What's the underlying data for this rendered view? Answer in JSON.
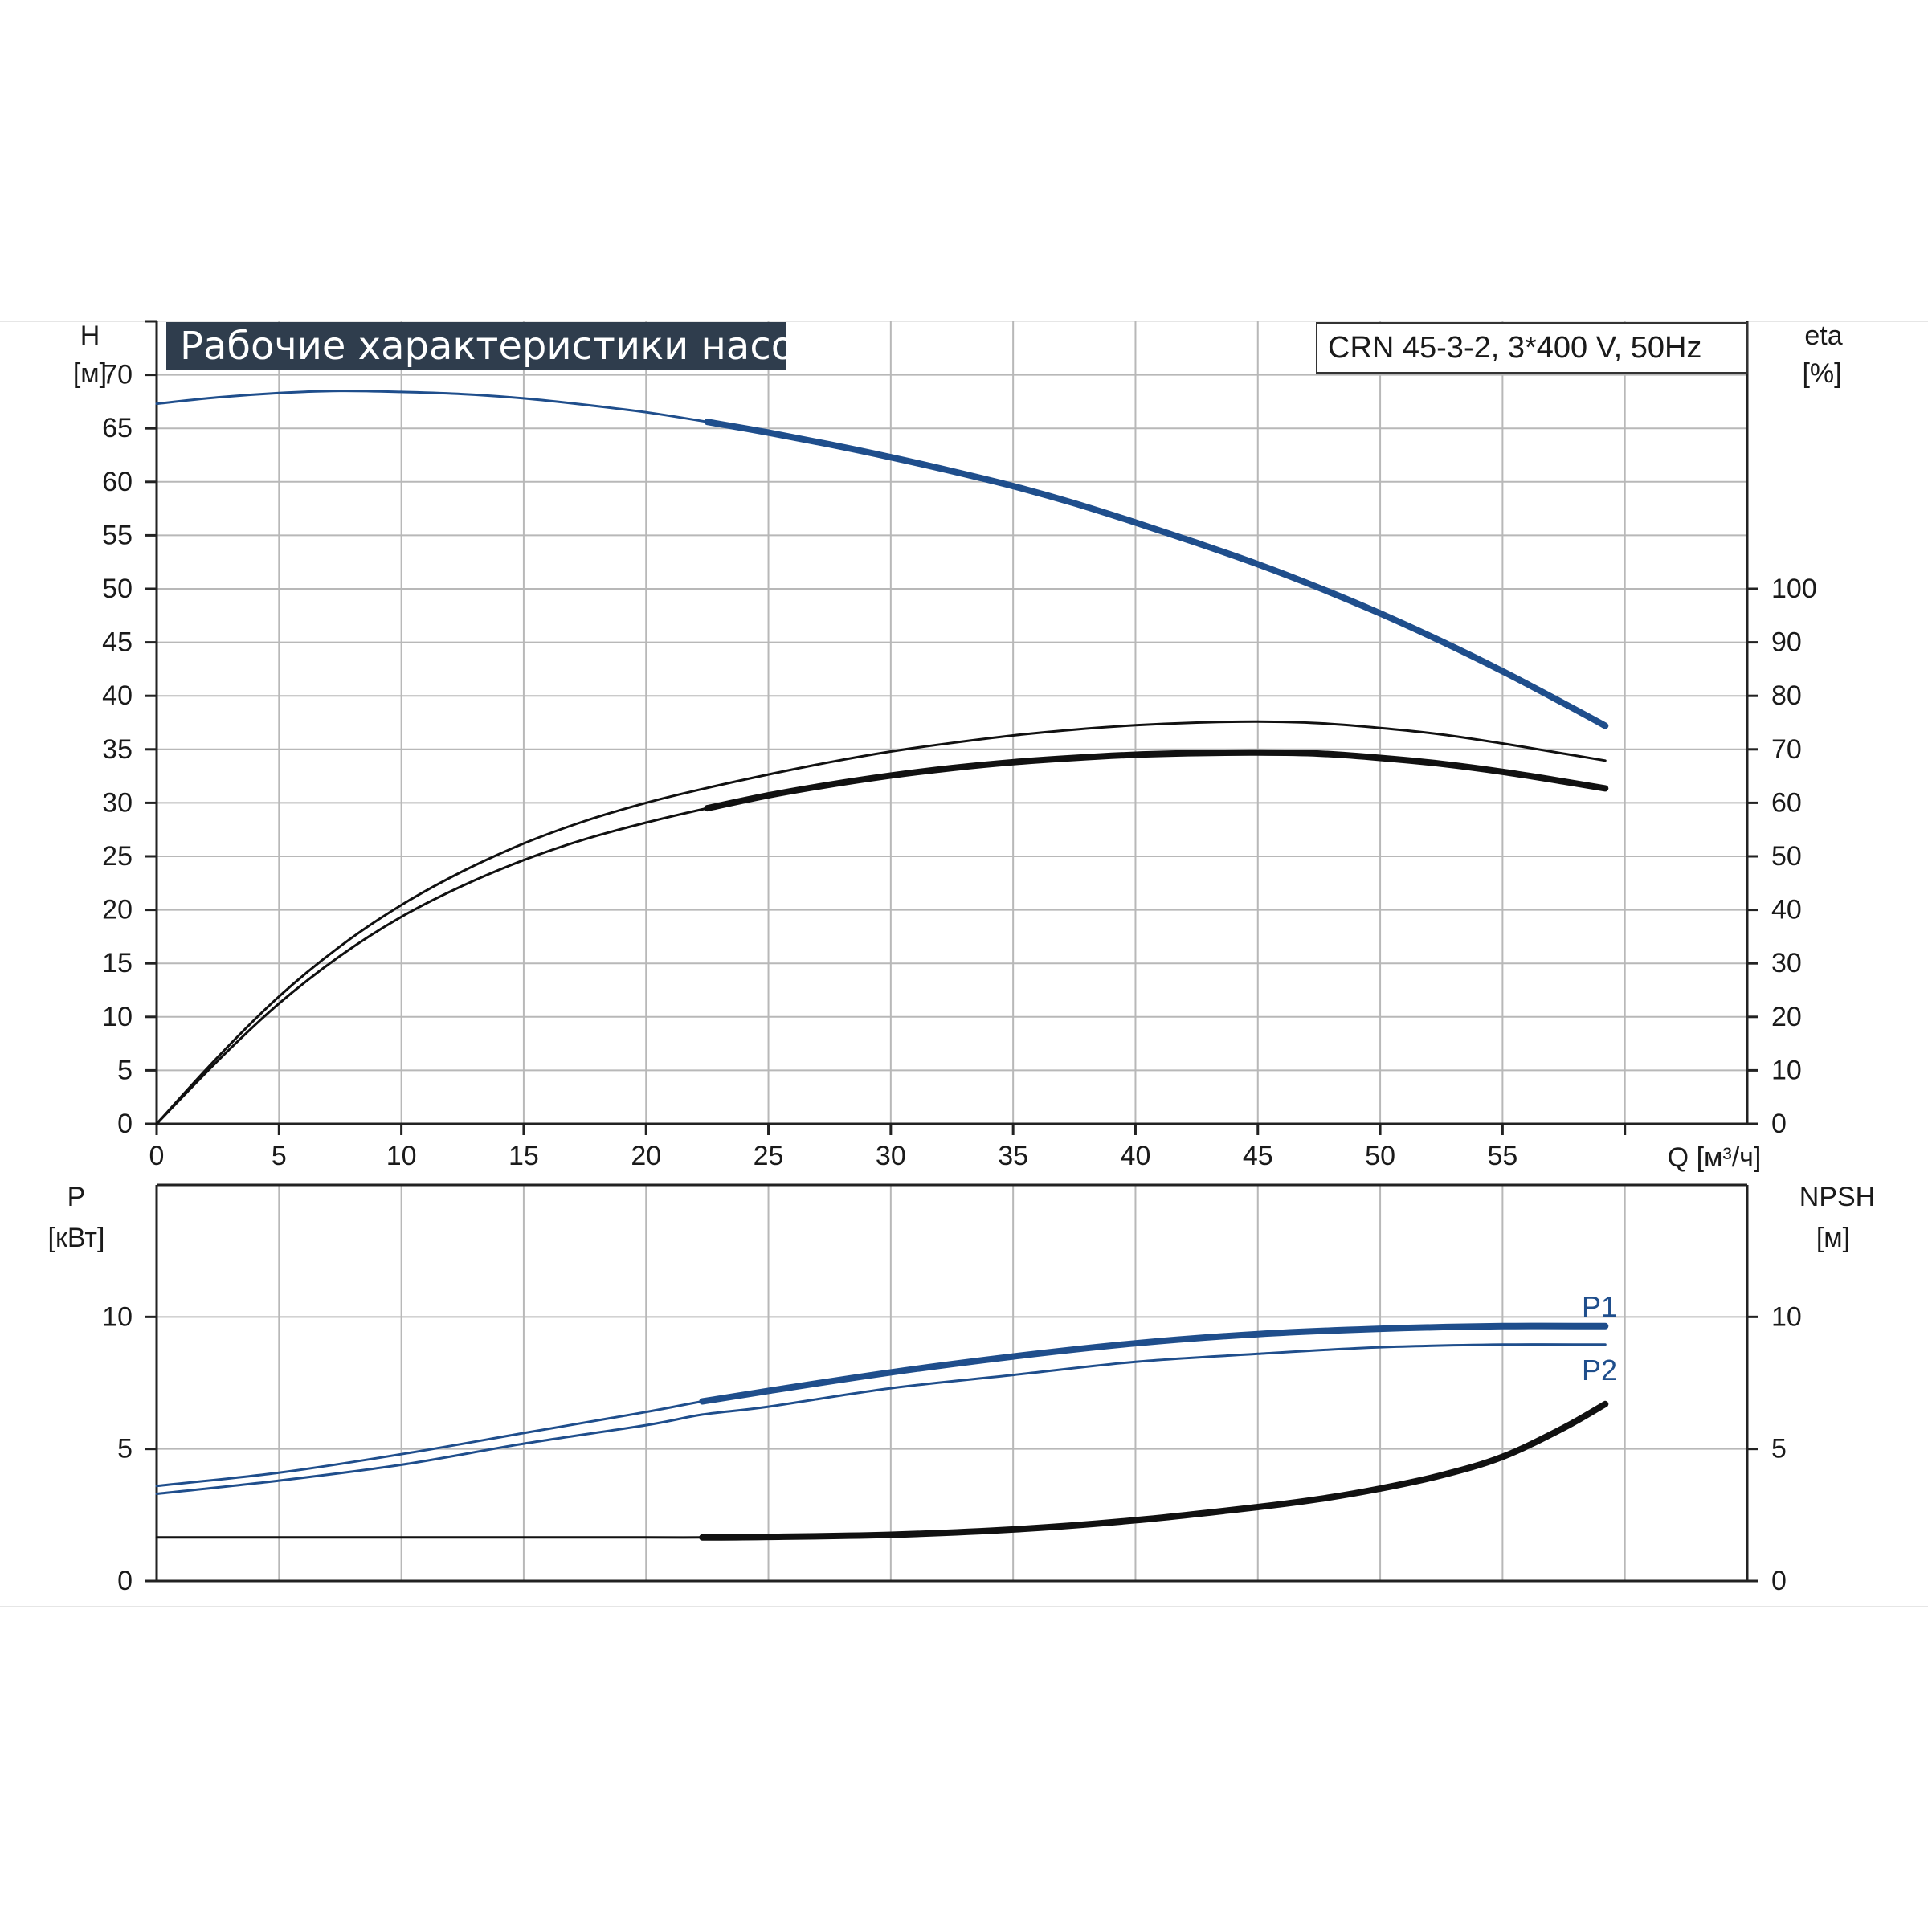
{
  "title": "Рабочие характеристики насоса",
  "model": "CRN 45-3-2, 3*400 V, 50Hz",
  "colors": {
    "blue": "#1f4e8c",
    "black": "#111111",
    "title_bg": "#2f3d4d",
    "grid": "#b8b8b8"
  },
  "chart_data": [
    {
      "type": "line",
      "panel": "top",
      "x_ticks": [
        "0",
        "5",
        "10",
        "15",
        "20",
        "25",
        "30",
        "35",
        "40",
        "45",
        "50",
        "55"
      ],
      "x_unit_label": "Q [м³/ч]",
      "xlim": [
        0,
        65
      ],
      "y_left_label": "H",
      "y_left_unit": "[м]",
      "y_left_ticks": [
        "0",
        "5",
        "10",
        "15",
        "20",
        "25",
        "30",
        "35",
        "40",
        "45",
        "50",
        "55",
        "60",
        "65",
        "70"
      ],
      "ylim_left": [
        0,
        75
      ],
      "y_right_label": "eta",
      "y_right_unit": "[%]",
      "y_right_ticks": [
        "0",
        "10",
        "20",
        "30",
        "40",
        "50",
        "60",
        "70",
        "80",
        "90",
        "100"
      ],
      "ylim_right": [
        0,
        150
      ],
      "grid": true,
      "series": [
        {
          "key": "h",
          "axis": "left",
          "color": "blue",
          "x": [
            0,
            2.5,
            5,
            7.5,
            10,
            12.5,
            15,
            17.5,
            20,
            22.5,
            25,
            27.5,
            30,
            32.5,
            35,
            37.5,
            40,
            42.5,
            45,
            47.5,
            50,
            52.5,
            55,
            57.5,
            59.2
          ],
          "y": [
            67.3,
            67.9,
            68.3,
            68.5,
            68.4,
            68.2,
            67.8,
            67.2,
            66.5,
            65.6,
            64.6,
            63.5,
            62.3,
            61.0,
            59.6,
            58.0,
            56.2,
            54.3,
            52.3,
            50.1,
            47.7,
            45.1,
            42.3,
            39.3,
            37.2
          ],
          "bold_from_x": 22.3
        },
        {
          "key": "eta_upper",
          "axis": "right",
          "color": "black",
          "x": [
            0,
            2.5,
            5,
            7.5,
            10,
            12.5,
            15,
            17.5,
            20,
            22.5,
            25,
            27.5,
            30,
            32.5,
            35,
            37.5,
            40,
            42.5,
            45,
            47.5,
            50,
            52.5,
            55,
            57.5,
            59.2
          ],
          "y": [
            0,
            12.5,
            23.8,
            33.2,
            40.9,
            47.2,
            52.4,
            56.6,
            60.0,
            62.8,
            65.3,
            67.6,
            69.6,
            71.2,
            72.6,
            73.7,
            74.5,
            75.0,
            75.2,
            74.9,
            74.0,
            72.8,
            71.1,
            69.2,
            67.9
          ]
        },
        {
          "key": "eta_lower",
          "axis": "right",
          "color": "black",
          "x": [
            0,
            2.5,
            5,
            7.5,
            10,
            12.5,
            15,
            17.5,
            20,
            22.5,
            25,
            27.5,
            30,
            32.5,
            35,
            37.5,
            40,
            42.5,
            45,
            47.5,
            50,
            52.5,
            55,
            57.5,
            59.2
          ],
          "y": [
            0,
            11.8,
            22.5,
            31.4,
            38.7,
            44.5,
            49.3,
            53.2,
            56.3,
            59.0,
            61.4,
            63.4,
            65.1,
            66.5,
            67.6,
            68.4,
            69.0,
            69.3,
            69.4,
            69.2,
            68.4,
            67.3,
            65.8,
            64.0,
            62.7
          ],
          "bold_from_x": 22.3
        }
      ]
    },
    {
      "type": "line",
      "panel": "bottom",
      "xlim": [
        0,
        65
      ],
      "y_left_label": "P",
      "y_left_unit": "[кВт]",
      "y_left_ticks": [
        "0",
        "5",
        "10"
      ],
      "ylim_left": [
        0,
        15
      ],
      "y_right_label": "NPSH",
      "y_right_unit": "[м]",
      "y_right_ticks": [
        "0",
        "5",
        "10"
      ],
      "ylim_right": [
        0,
        15
      ],
      "grid": true,
      "series": [
        {
          "name": "P1",
          "key": "p1",
          "axis": "left",
          "color": "blue",
          "x": [
            0,
            5,
            10,
            15,
            20,
            22.3,
            25,
            30,
            35,
            40,
            45,
            50,
            55,
            59.2
          ],
          "y": [
            3.6,
            4.1,
            4.8,
            5.6,
            6.4,
            6.8,
            7.2,
            7.9,
            8.5,
            9.0,
            9.35,
            9.55,
            9.65,
            9.65
          ],
          "bold_from_x": 22.3
        },
        {
          "name": "P2",
          "key": "p2",
          "axis": "left",
          "color": "blue",
          "x": [
            0,
            5,
            10,
            15,
            20,
            22.3,
            25,
            30,
            35,
            40,
            45,
            50,
            55,
            59.2
          ],
          "y": [
            3.3,
            3.8,
            4.4,
            5.2,
            5.9,
            6.3,
            6.6,
            7.3,
            7.8,
            8.3,
            8.6,
            8.85,
            8.95,
            8.95
          ]
        },
        {
          "key": "npsh",
          "axis": "right",
          "color": "black",
          "x": [
            0,
            5,
            10,
            15,
            20,
            22.3,
            25,
            30,
            35,
            40,
            45,
            47.5,
            50,
            52.5,
            55,
            57.5,
            59.2
          ],
          "y": [
            1.65,
            1.65,
            1.65,
            1.65,
            1.65,
            1.65,
            1.67,
            1.75,
            1.95,
            2.3,
            2.8,
            3.1,
            3.5,
            4.0,
            4.7,
            5.8,
            6.7
          ],
          "bold_from_x": 22.3
        }
      ]
    }
  ]
}
